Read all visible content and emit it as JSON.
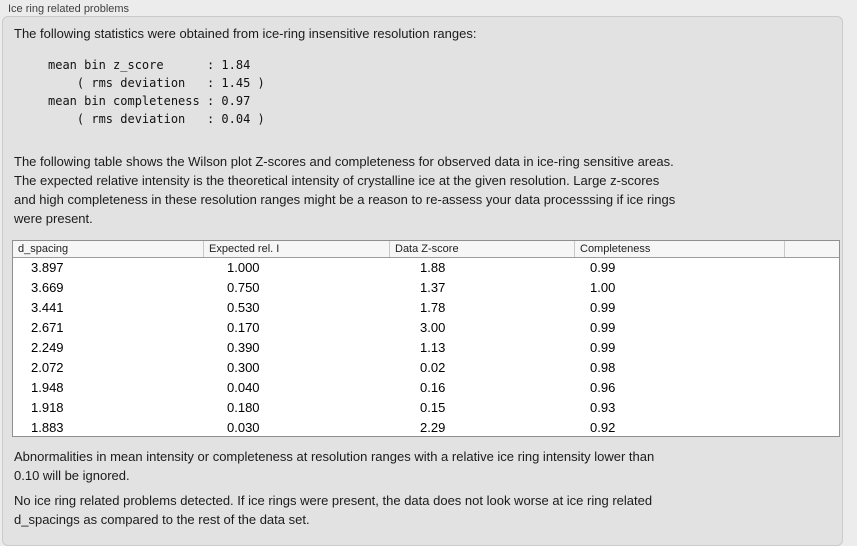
{
  "panel": {
    "title": "Ice ring related problems"
  },
  "intro": {
    "text": "The following statistics were obtained from ice-ring insensitive resolution ranges:",
    "stats": "mean bin z_score      : 1.84\n    ( rms deviation   : 1.45 )\nmean bin completeness : 0.97\n    ( rms deviation   : 0.04 )"
  },
  "description": {
    "text": "The following table shows the Wilson plot Z-scores and completeness for observed data in ice-ring sensitive areas.\nThe expected relative intensity is the theoretical intensity of crystalline ice at the given resolution. Large z-scores\nand high completeness in these resolution ranges might be a reason to re-assess your data processsing if ice rings\nwere present."
  },
  "table": {
    "columns": [
      "d_spacing",
      "Expected rel. I",
      "Data Z-score",
      "Completeness",
      ""
    ],
    "rows": [
      [
        "3.897",
        "1.000",
        "1.88",
        "0.99"
      ],
      [
        "3.669",
        "0.750",
        "1.37",
        "1.00"
      ],
      [
        "3.441",
        "0.530",
        "1.78",
        "0.99"
      ],
      [
        "2.671",
        "0.170",
        "3.00",
        "0.99"
      ],
      [
        "2.249",
        "0.390",
        "1.13",
        "0.99"
      ],
      [
        "2.072",
        "0.300",
        "0.02",
        "0.98"
      ],
      [
        "1.948",
        "0.040",
        "0.16",
        "0.96"
      ],
      [
        "1.918",
        "0.180",
        "0.15",
        "0.93"
      ],
      [
        "1.883",
        "0.030",
        "2.29",
        "0.92"
      ]
    ]
  },
  "notes": {
    "ignore": "Abnormalities in mean intensity or completeness at resolution ranges with a relative ice ring intensity lower than\n0.10 will be ignored.",
    "conclusion": "No ice ring related problems detected. If ice rings were present, the data does not look worse at ice ring related\nd_spacings as compared to the rest of the data set."
  },
  "colors": {
    "page_bg": "#ececec",
    "panel_bg": "#e2e2e2",
    "panel_border": "#cbcbcb",
    "table_bg": "#ffffff",
    "table_border": "#8f8f8f",
    "header_bg": "#f6f6f6",
    "text": "#1b1b1b"
  }
}
